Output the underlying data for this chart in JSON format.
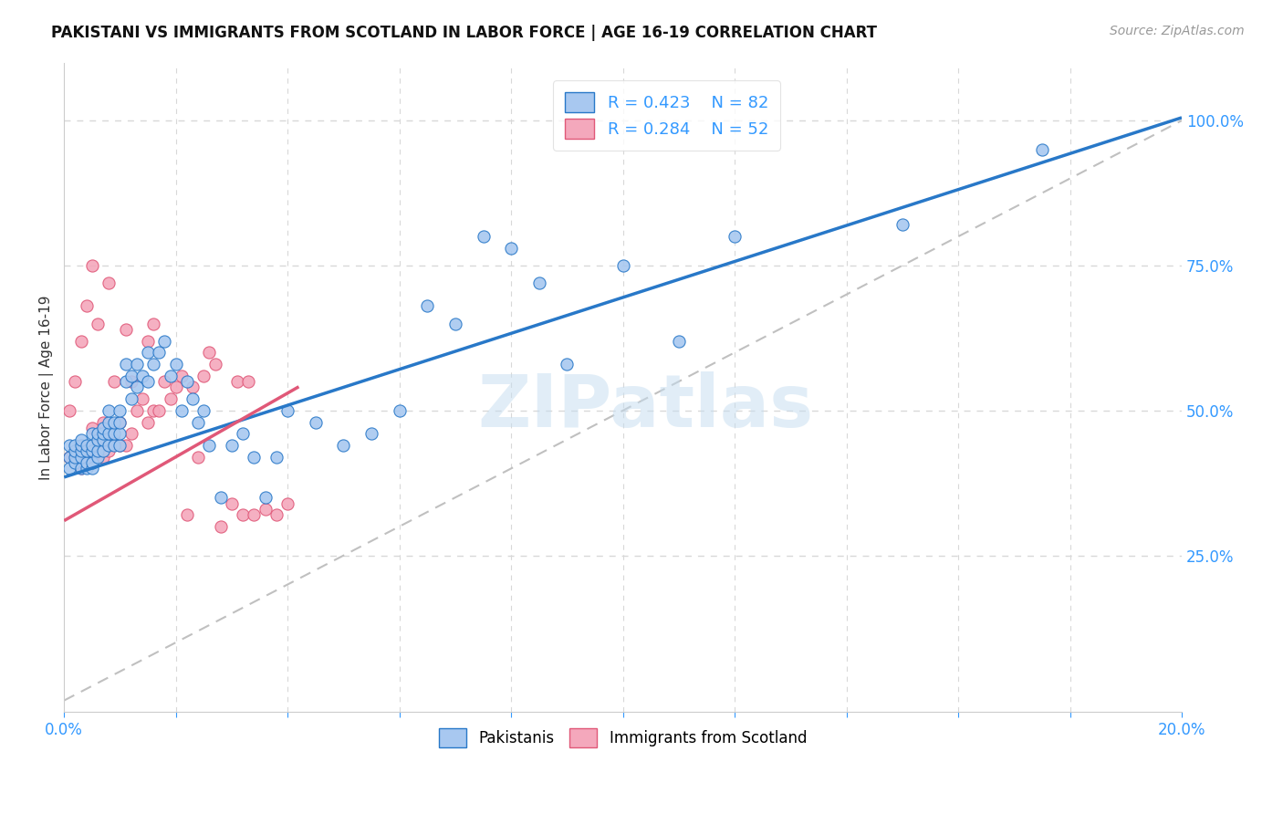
{
  "title": "PAKISTANI VS IMMIGRANTS FROM SCOTLAND IN LABOR FORCE | AGE 16-19 CORRELATION CHART",
  "source": "Source: ZipAtlas.com",
  "ylabel": "In Labor Force | Age 16-19",
  "xlim": [
    0.0,
    0.2
  ],
  "ylim": [
    -0.02,
    1.1
  ],
  "yticks_right": [
    0.25,
    0.5,
    0.75,
    1.0
  ],
  "blue_color": "#a8c8f0",
  "pink_color": "#f4a8bc",
  "blue_line_color": "#2878c8",
  "pink_line_color": "#e05878",
  "ref_line_color": "#c8c8c8",
  "legend_R1": "0.423",
  "legend_N1": "82",
  "legend_R2": "0.284",
  "legend_N2": "52",
  "watermark": "ZIPatlas",
  "blue_intercept": 0.385,
  "blue_slope": 3.1,
  "pink_intercept": 0.31,
  "pink_slope": 5.5,
  "pakistanis_x": [
    0.001,
    0.001,
    0.001,
    0.002,
    0.002,
    0.002,
    0.002,
    0.003,
    0.003,
    0.003,
    0.003,
    0.003,
    0.004,
    0.004,
    0.004,
    0.004,
    0.005,
    0.005,
    0.005,
    0.005,
    0.005,
    0.006,
    0.006,
    0.006,
    0.006,
    0.007,
    0.007,
    0.007,
    0.007,
    0.008,
    0.008,
    0.008,
    0.008,
    0.009,
    0.009,
    0.009,
    0.01,
    0.01,
    0.01,
    0.01,
    0.011,
    0.011,
    0.012,
    0.012,
    0.013,
    0.013,
    0.014,
    0.015,
    0.015,
    0.016,
    0.017,
    0.018,
    0.019,
    0.02,
    0.021,
    0.022,
    0.023,
    0.024,
    0.025,
    0.026,
    0.028,
    0.03,
    0.032,
    0.034,
    0.036,
    0.038,
    0.04,
    0.045,
    0.05,
    0.055,
    0.06,
    0.065,
    0.07,
    0.075,
    0.08,
    0.085,
    0.09,
    0.1,
    0.11,
    0.12,
    0.15,
    0.175
  ],
  "pakistanis_y": [
    0.42,
    0.44,
    0.4,
    0.41,
    0.42,
    0.43,
    0.44,
    0.4,
    0.42,
    0.43,
    0.44,
    0.45,
    0.4,
    0.41,
    0.43,
    0.44,
    0.4,
    0.41,
    0.43,
    0.44,
    0.46,
    0.42,
    0.43,
    0.45,
    0.46,
    0.43,
    0.45,
    0.46,
    0.47,
    0.44,
    0.46,
    0.48,
    0.5,
    0.44,
    0.46,
    0.48,
    0.44,
    0.46,
    0.48,
    0.5,
    0.55,
    0.58,
    0.52,
    0.56,
    0.54,
    0.58,
    0.56,
    0.55,
    0.6,
    0.58,
    0.6,
    0.62,
    0.56,
    0.58,
    0.5,
    0.55,
    0.52,
    0.48,
    0.5,
    0.44,
    0.35,
    0.44,
    0.46,
    0.42,
    0.35,
    0.42,
    0.5,
    0.48,
    0.44,
    0.46,
    0.5,
    0.68,
    0.65,
    0.8,
    0.78,
    0.72,
    0.58,
    0.75,
    0.62,
    0.8,
    0.82,
    0.95
  ],
  "scotland_x": [
    0.001,
    0.001,
    0.002,
    0.002,
    0.003,
    0.003,
    0.003,
    0.004,
    0.004,
    0.005,
    0.005,
    0.005,
    0.006,
    0.006,
    0.007,
    0.007,
    0.008,
    0.008,
    0.009,
    0.009,
    0.01,
    0.01,
    0.011,
    0.011,
    0.012,
    0.012,
    0.013,
    0.014,
    0.015,
    0.015,
    0.016,
    0.016,
    0.017,
    0.018,
    0.019,
    0.02,
    0.021,
    0.022,
    0.023,
    0.024,
    0.025,
    0.026,
    0.027,
    0.028,
    0.03,
    0.031,
    0.032,
    0.033,
    0.034,
    0.036,
    0.038,
    0.04
  ],
  "scotland_y": [
    0.42,
    0.5,
    0.43,
    0.55,
    0.4,
    0.44,
    0.62,
    0.42,
    0.68,
    0.43,
    0.47,
    0.75,
    0.44,
    0.65,
    0.42,
    0.48,
    0.43,
    0.72,
    0.45,
    0.55,
    0.44,
    0.48,
    0.44,
    0.64,
    0.46,
    0.55,
    0.5,
    0.52,
    0.48,
    0.62,
    0.5,
    0.65,
    0.5,
    0.55,
    0.52,
    0.54,
    0.56,
    0.32,
    0.54,
    0.42,
    0.56,
    0.6,
    0.58,
    0.3,
    0.34,
    0.55,
    0.32,
    0.55,
    0.32,
    0.33,
    0.32,
    0.34
  ]
}
